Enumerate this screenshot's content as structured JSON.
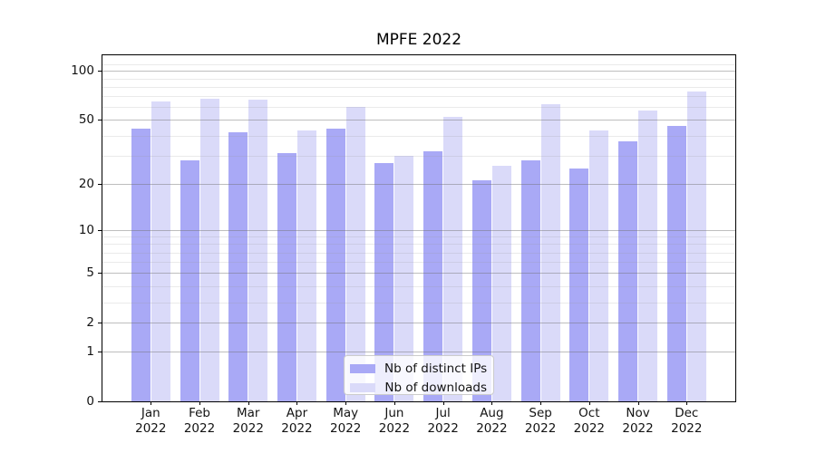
{
  "title": "MPFE 2022",
  "chart_data": {
    "type": "bar",
    "title": "MPFE 2022",
    "xlabel": "",
    "ylabel": "",
    "yscale": "log1p",
    "ylim": [
      0,
      125
    ],
    "grid": true,
    "legend_position": "lower center",
    "y_major_ticks": [
      0,
      1,
      2,
      5,
      10,
      20,
      50,
      100
    ],
    "y_minor_gridlines": [
      3,
      4,
      6,
      7,
      8,
      9,
      30,
      40,
      60,
      70,
      80,
      90,
      110
    ],
    "categories": [
      "Jan 2022",
      "Feb 2022",
      "Mar 2022",
      "Apr 2022",
      "May 2022",
      "Jun 2022",
      "Jul 2022",
      "Aug 2022",
      "Sep 2022",
      "Oct 2022",
      "Nov 2022",
      "Dec 2022"
    ],
    "series": [
      {
        "name": "Nb of distinct IPs",
        "color": "#a9a9f6",
        "values": [
          44,
          28,
          42,
          31,
          44,
          27,
          32,
          21,
          28,
          25,
          37,
          46
        ]
      },
      {
        "name": "Nb of downloads",
        "color": "#dadaf9",
        "values": [
          65,
          68,
          67,
          43,
          60,
          30,
          52,
          26,
          63,
          43,
          57,
          75
        ]
      }
    ]
  },
  "colors": {
    "background": "#ffffff",
    "axis": "#000000",
    "text": "#131313",
    "grid_major": "#b7b7b7",
    "grid_minor": "#e6e6e6"
  }
}
